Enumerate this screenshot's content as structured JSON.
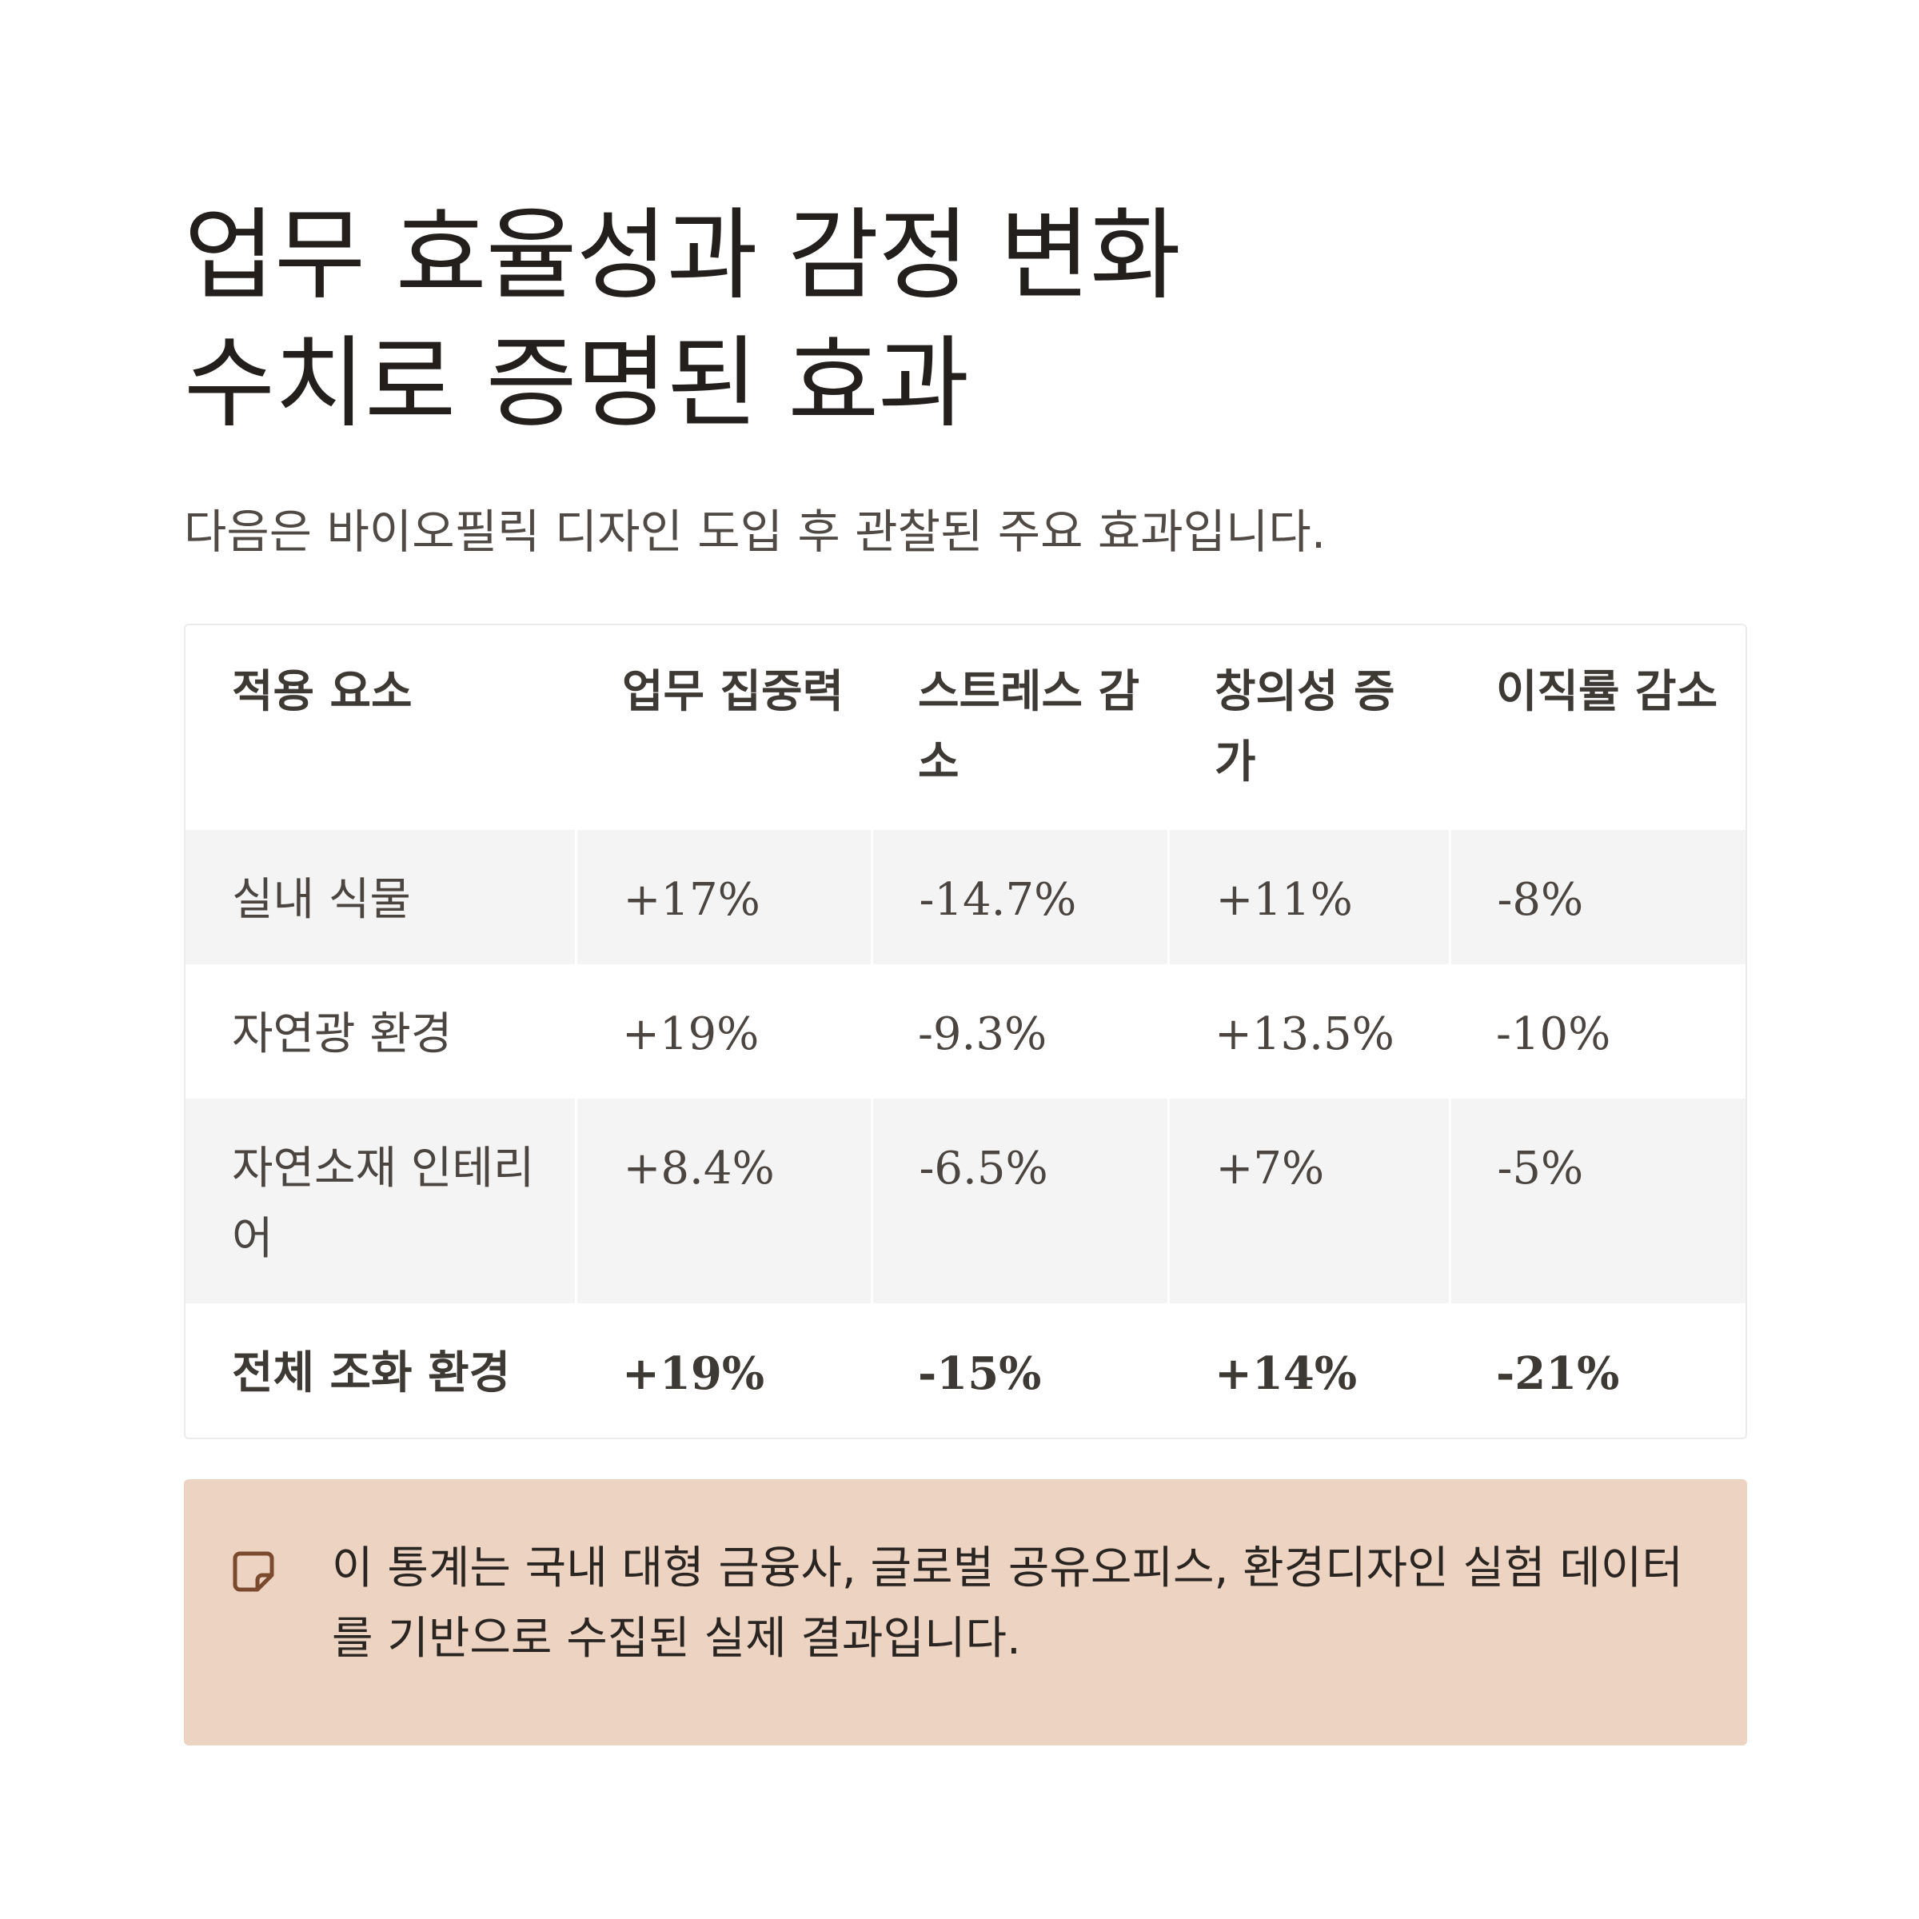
{
  "header": {
    "title_line1": "업무 효율성과 감정 변화",
    "title_line2": "수치로 증명된 효과",
    "subtitle": "다음은 바이오필릭 디자인 도입 후 관찰된 주요 효과입니다."
  },
  "table": {
    "columns": [
      "적용 요소",
      "업무 집중력",
      "스트레스 감소",
      "창의성 증가",
      "이직률 감소"
    ],
    "rows": [
      [
        "실내 식물",
        "+17%",
        "-14.7%",
        "+11%",
        "-8%"
      ],
      [
        "자연광 환경",
        "+19%",
        "-9.3%",
        "+13.5%",
        "-10%"
      ],
      [
        "자연소재 인테리어",
        "+8.4%",
        "-6.5%",
        "+7%",
        "-5%"
      ],
      [
        "전체 조화 환경",
        "+19%",
        "-15%",
        "+14%",
        "-21%"
      ]
    ]
  },
  "note": {
    "icon": "note-icon",
    "text": "이 통계는 국내 대형 금융사, 글로벌 공유오피스, 환경디자인 실험 데이터를 기반으로 수집된 실제 결과입니다."
  },
  "colors": {
    "note_background": "#ecd3c2",
    "note_icon": "#7a4a2e",
    "row_shade": "#f4f4f4"
  }
}
